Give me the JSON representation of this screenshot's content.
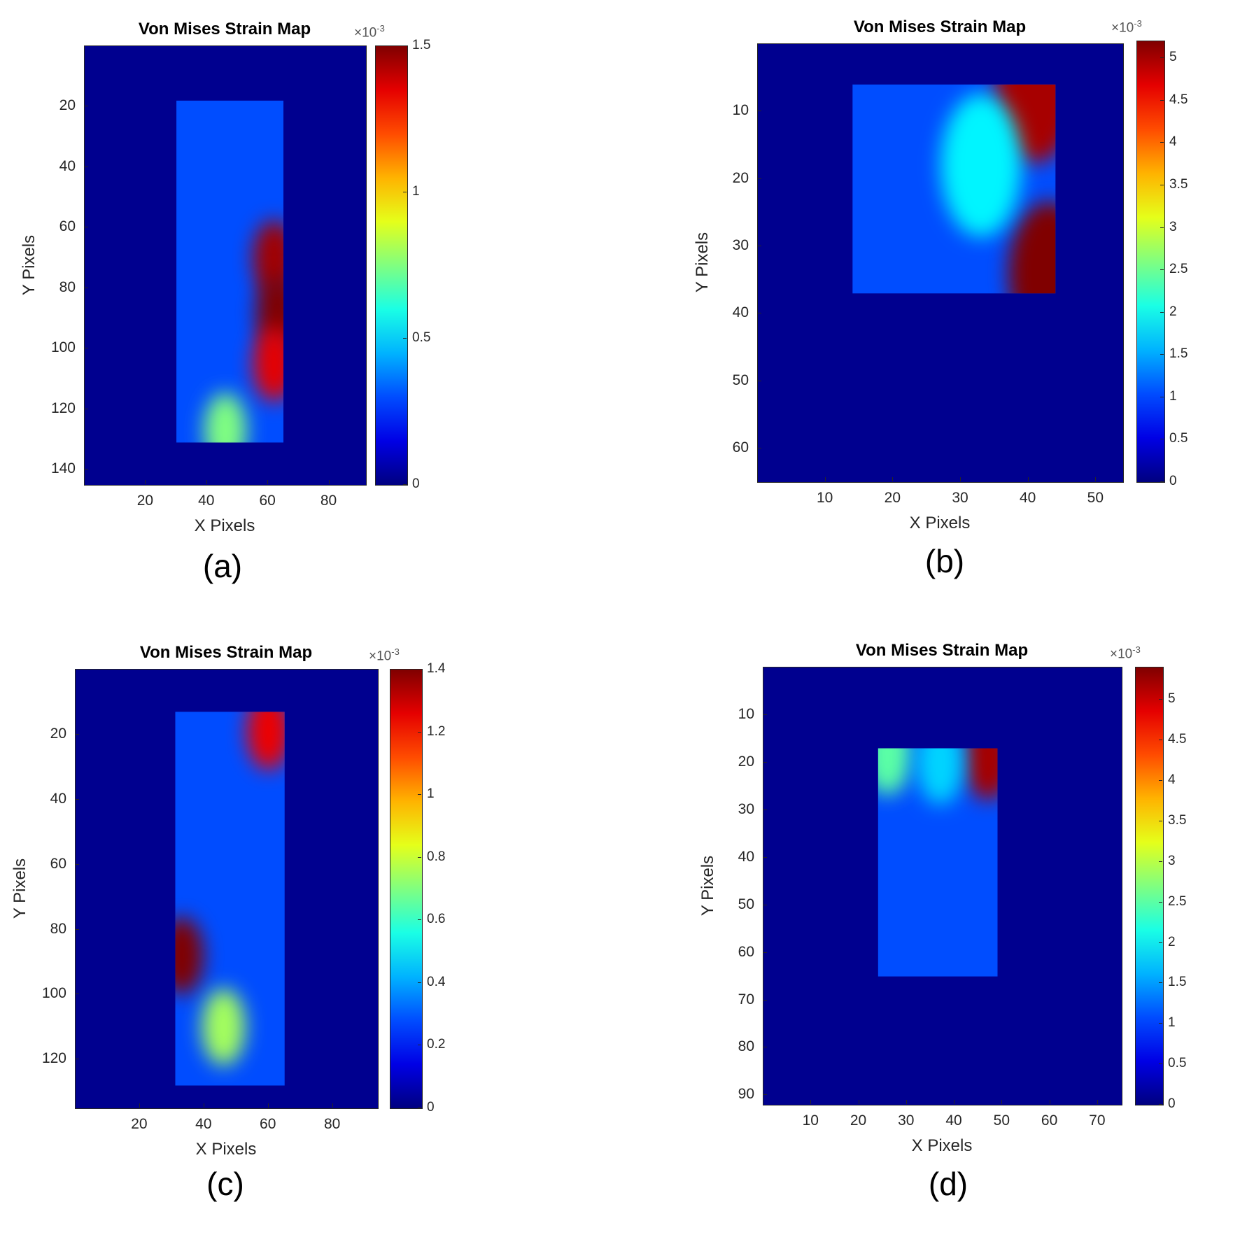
{
  "chart_data": [
    {
      "type": "heatmap",
      "title": "Von Mises Strain Map",
      "xlabel": "X Pixels",
      "ylabel": "Y Pixels",
      "caption": "(a)",
      "xlim": [
        0,
        92
      ],
      "ylim": [
        0,
        145
      ],
      "x_ticks": [
        20,
        40,
        60,
        80
      ],
      "y_ticks": [
        20,
        40,
        60,
        80,
        100,
        120,
        140
      ],
      "colorbar": {
        "min": 0,
        "max": 1.5,
        "ticks": [
          "0",
          "0.5",
          "1",
          "1.5"
        ],
        "tick_values": [
          0,
          0.5,
          1,
          1.5
        ],
        "exponent": "×10",
        "exponent_power": "-3"
      },
      "specimen_region": {
        "x": [
          30,
          65
        ],
        "y": [
          18,
          131
        ]
      },
      "hotspots": [
        {
          "x": 62,
          "y": 70,
          "value": 1.45,
          "label": "right edge"
        },
        {
          "x": 63,
          "y": 88,
          "value": 1.5,
          "label": "right edge"
        },
        {
          "x": 62,
          "y": 105,
          "value": 1.35,
          "label": "right edge"
        },
        {
          "x": 46,
          "y": 127,
          "value": 0.75,
          "label": "bottom band"
        }
      ]
    },
    {
      "type": "heatmap",
      "title": "Von Mises Strain Map",
      "xlabel": "X Pixels",
      "ylabel": "Y Pixels",
      "caption": "(b)",
      "xlim": [
        0,
        54
      ],
      "ylim": [
        0,
        65
      ],
      "x_ticks": [
        10,
        20,
        30,
        40,
        50
      ],
      "y_ticks": [
        10,
        20,
        30,
        40,
        50,
        60
      ],
      "colorbar": {
        "min": 0,
        "max": 5.2,
        "ticks": [
          "0",
          "0.5",
          "1",
          "1.5",
          "2",
          "2.5",
          "3",
          "3.5",
          "4",
          "4.5",
          "5"
        ],
        "tick_values": [
          0,
          0.5,
          1,
          1.5,
          2,
          2.5,
          3,
          3.5,
          4,
          4.5,
          5
        ],
        "exponent": "×10",
        "exponent_power": "-3"
      },
      "specimen_region": {
        "x": [
          14,
          44
        ],
        "y": [
          6,
          37
        ]
      },
      "hotspots": [
        {
          "x": 41,
          "y": 7,
          "value": 5.0,
          "label": "top-right corner"
        },
        {
          "x": 43,
          "y": 34,
          "value": 5.2,
          "label": "bottom-right corner"
        },
        {
          "x": 33,
          "y": 18,
          "value": 1.9,
          "label": "diagonal band"
        }
      ]
    },
    {
      "type": "heatmap",
      "title": "Von Mises Strain Map",
      "xlabel": "X Pixels",
      "ylabel": "Y Pixels",
      "caption": "(c)",
      "xlim": [
        0,
        94
      ],
      "ylim": [
        0,
        135
      ],
      "x_ticks": [
        20,
        40,
        60,
        80
      ],
      "y_ticks": [
        20,
        40,
        60,
        80,
        100,
        120
      ],
      "colorbar": {
        "min": 0,
        "max": 1.4,
        "ticks": [
          "0",
          "0.2",
          "0.4",
          "0.6",
          "0.8",
          "1",
          "1.2",
          "1.4"
        ],
        "tick_values": [
          0,
          0.2,
          0.4,
          0.6,
          0.8,
          1.0,
          1.2,
          1.4
        ],
        "exponent": "×10",
        "exponent_power": "-3"
      },
      "specimen_region": {
        "x": [
          31,
          65
        ],
        "y": [
          13,
          128
        ]
      },
      "hotspots": [
        {
          "x": 33,
          "y": 88,
          "value": 1.4,
          "label": "left edge"
        },
        {
          "x": 60,
          "y": 19,
          "value": 1.25,
          "label": "top-right"
        },
        {
          "x": 46,
          "y": 110,
          "value": 0.75,
          "label": "lower centre"
        }
      ]
    },
    {
      "type": "heatmap",
      "title": "Von Mises Strain Map",
      "xlabel": "X Pixels",
      "ylabel": "Y Pixels",
      "caption": "(d)",
      "xlim": [
        0,
        75
      ],
      "ylim": [
        0,
        92
      ],
      "x_ticks": [
        10,
        20,
        30,
        40,
        50,
        60,
        70
      ],
      "y_ticks": [
        10,
        20,
        30,
        40,
        50,
        60,
        70,
        80,
        90
      ],
      "colorbar": {
        "min": 0,
        "max": 5.4,
        "ticks": [
          "0",
          "0.5",
          "1",
          "1.5",
          "2",
          "2.5",
          "3",
          "3.5",
          "4",
          "4.5",
          "5"
        ],
        "tick_values": [
          0,
          0.5,
          1,
          1.5,
          2,
          2.5,
          3,
          3.5,
          4,
          4.5,
          5
        ],
        "exponent": "×10",
        "exponent_power": "-3"
      },
      "specimen_region": {
        "x": [
          24,
          49
        ],
        "y": [
          17,
          65
        ]
      },
      "hotspots": [
        {
          "x": 47,
          "y": 19,
          "value": 5.2,
          "label": "top-right corner"
        },
        {
          "x": 26,
          "y": 18,
          "value": 2.5,
          "label": "top-left corner"
        },
        {
          "x": 37,
          "y": 20,
          "value": 1.8,
          "label": "top band"
        }
      ]
    }
  ]
}
